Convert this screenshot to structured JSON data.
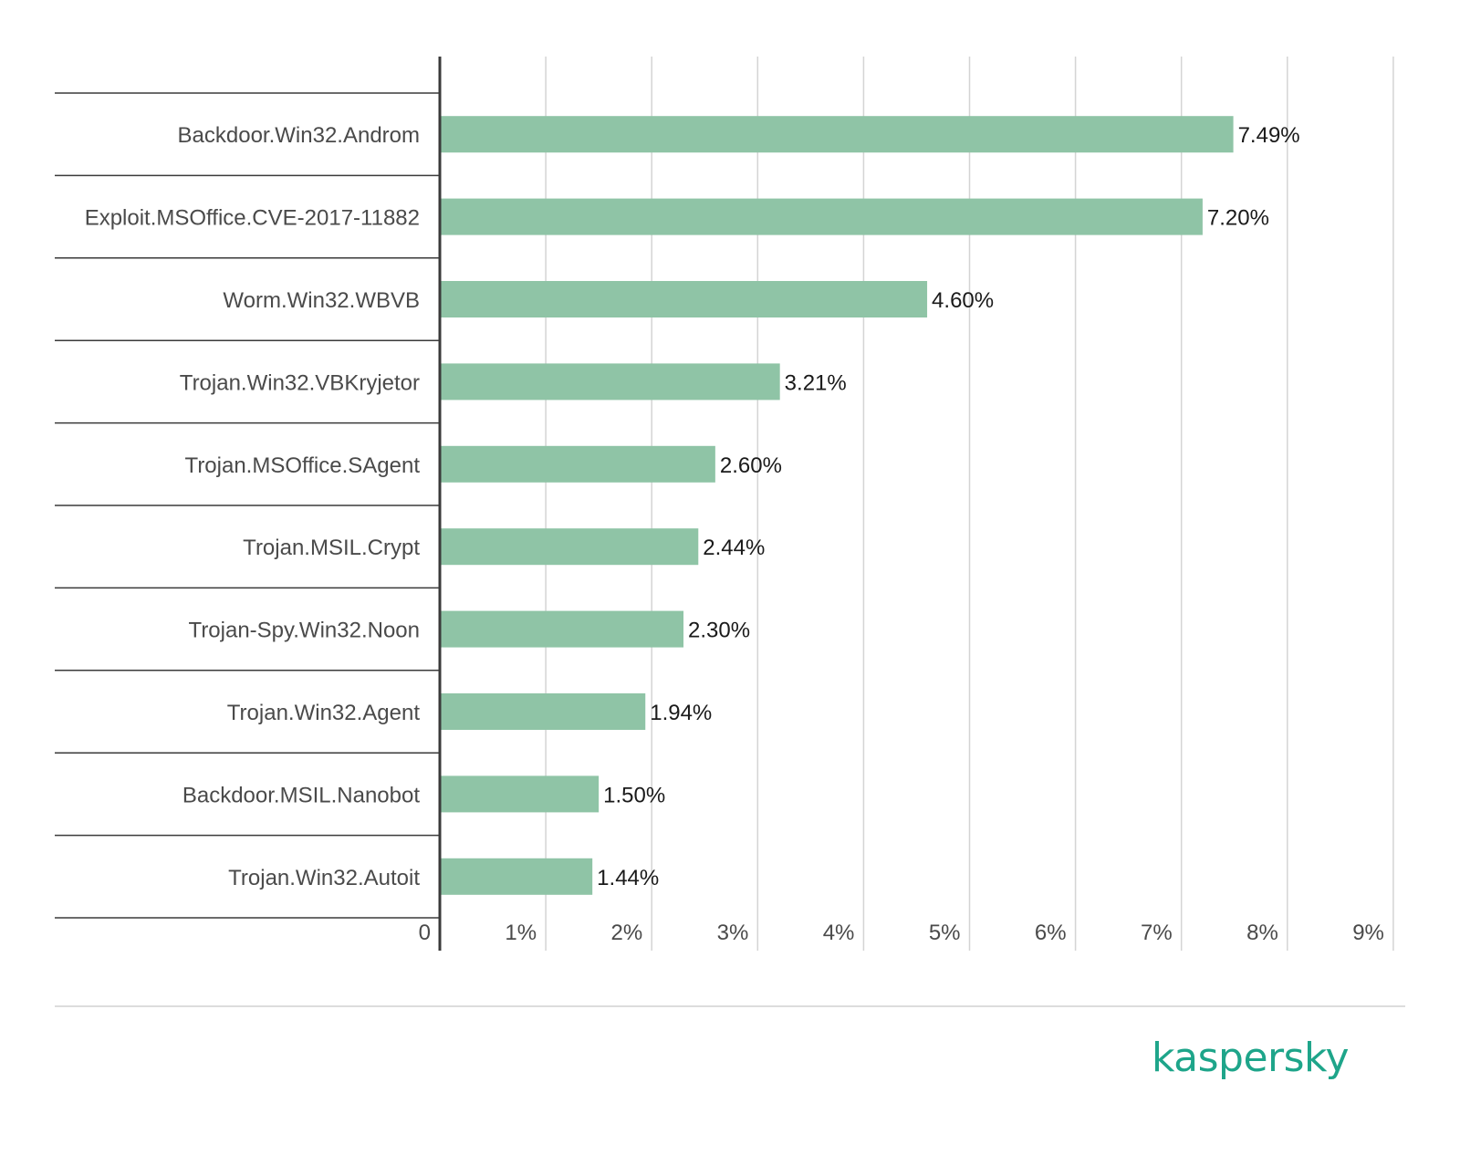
{
  "chart_data": {
    "type": "bar",
    "orientation": "horizontal",
    "categories": [
      "Backdoor.Win32.Androm",
      "Exploit.MSOffice.CVE-2017-11882",
      "Worm.Win32.WBVB",
      "Trojan.Win32.VBKryjetor",
      "Trojan.MSOffice.SAgent",
      "Trojan.MSIL.Crypt",
      "Trojan-Spy.Win32.Noon",
      "Trojan.Win32.Agent",
      "Backdoor.MSIL.Nanobot",
      "Trojan.Win32.Autoit"
    ],
    "values": [
      7.49,
      7.2,
      4.6,
      3.21,
      2.6,
      2.44,
      2.3,
      1.94,
      1.5,
      1.44
    ],
    "value_labels": [
      "7.49%",
      "7.20%",
      "4.60%",
      "3.21%",
      "2.60%",
      "2.44%",
      "2.30%",
      "1.94%",
      "1.50%",
      "1.44%"
    ],
    "x_ticks": [
      "0",
      "1%",
      "2%",
      "3%",
      "4%",
      "5%",
      "6%",
      "7%",
      "8%",
      "9%"
    ],
    "xlim": [
      0,
      9
    ],
    "grid": true,
    "bar_color": "#8fc4a6",
    "title": "",
    "xlabel": "",
    "ylabel": ""
  },
  "brand": {
    "logo_text": "kaspersky",
    "color": "#1ea58a"
  }
}
